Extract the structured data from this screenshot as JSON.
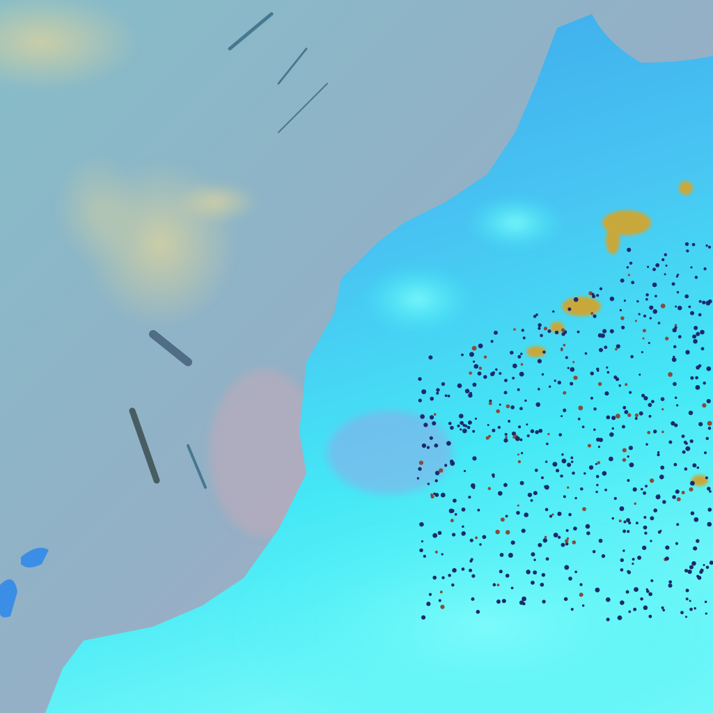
{
  "image": {
    "kind": "false-color satellite image",
    "colors": {
      "ocean": "#8fb3c6",
      "ocean_haze": "#b7b0c4",
      "coastal_pink": "#c7aebb",
      "land_blue": "#39a6ee",
      "desert_cyan": "#3ef0f5",
      "cloud_dark": "#1c2a6a",
      "cloud_yellow": "#c9a83a",
      "haze_yellow": "#d9d39a"
    }
  }
}
